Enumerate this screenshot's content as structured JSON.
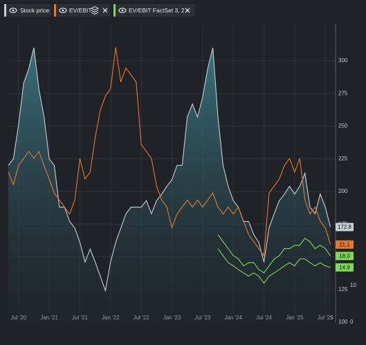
{
  "chart_data": {
    "type": "line",
    "legend": [
      "Stock price",
      "EV/EBIT",
      "EV/EBIT FactSet 3, 2"
    ],
    "x": [
      "2020-05",
      "2020-06",
      "2020-07",
      "2020-08",
      "2020-09",
      "2020-10",
      "2020-11",
      "2020-12",
      "2021-01",
      "2021-02",
      "2021-03",
      "2021-04",
      "2021-05",
      "2021-06",
      "2021-07",
      "2021-08",
      "2021-09",
      "2021-10",
      "2021-11",
      "2021-12",
      "2022-01",
      "2022-02",
      "2022-03",
      "2022-04",
      "2022-05",
      "2022-06",
      "2022-07",
      "2022-08",
      "2022-09",
      "2022-10",
      "2022-11",
      "2022-12",
      "2023-01",
      "2023-02",
      "2023-03",
      "2023-04",
      "2023-05",
      "2023-06",
      "2023-07",
      "2023-08",
      "2023-09",
      "2023-10",
      "2023-11",
      "2023-12",
      "2024-01",
      "2024-02",
      "2024-03",
      "2024-04",
      "2024-05",
      "2024-06",
      "2024-07",
      "2024-08",
      "2024-09",
      "2024-10",
      "2024-11",
      "2024-12",
      "2025-01",
      "2025-02",
      "2025-03",
      "2025-04",
      "2025-05",
      "2025-06",
      "2025-07",
      "2025-08"
    ],
    "xlim": [
      "2020-05",
      "2025-09"
    ],
    "xticks": [
      {
        "value": "2020-07",
        "label": "Jul '20"
      },
      {
        "value": "2021-01",
        "label": "Jan '21"
      },
      {
        "value": "2021-07",
        "label": "Jul '21"
      },
      {
        "value": "2022-01",
        "label": "Jan '22"
      },
      {
        "value": "2022-07",
        "label": "Jul '22"
      },
      {
        "value": "2023-01",
        "label": "Jan '23"
      },
      {
        "value": "2023-07",
        "label": "Jul '23"
      },
      {
        "value": "2024-01",
        "label": "Jan '24"
      },
      {
        "value": "2024-07",
        "label": "Jul '24"
      },
      {
        "value": "2025-01",
        "label": "Jan '25"
      },
      {
        "value": "2025-07",
        "label": "Jul '25"
      }
    ],
    "ylim": [
      100,
      328
    ],
    "yticks": [
      100,
      125,
      150,
      175,
      200,
      225,
      250,
      275,
      300
    ],
    "y2lim": [
      0,
      81
    ],
    "y2ticks": [
      0,
      10
    ],
    "grid": true,
    "series": [
      {
        "name": "Stock price",
        "color": "#c9ced4",
        "area": true,
        "values": [
          220,
          225,
          251,
          283,
          294,
          310,
          278,
          257,
          225,
          220,
          188,
          188,
          177,
          172,
          161,
          146,
          156,
          146,
          135,
          124,
          146,
          161,
          172,
          183,
          188,
          188,
          188,
          193,
          183,
          193,
          198,
          204,
          209,
          220,
          220,
          257,
          267,
          257,
          272,
          294,
          310,
          257,
          220,
          204,
          193,
          188,
          177,
          177,
          167,
          161,
          146,
          172,
          183,
          193,
          198,
          204,
          198,
          204,
          214,
          188,
          183,
          198,
          188,
          172.8
        ]
      },
      {
        "name": "EV/EBIT",
        "color": "#e8792b",
        "axis": "y2",
        "values": [
          40.8,
          37.4,
          42.6,
          44.5,
          46.4,
          44.5,
          46.4,
          42.6,
          38.9,
          35.1,
          33.2,
          31.3,
          29.4,
          33.2,
          44.5,
          38.9,
          40.8,
          50.2,
          57.7,
          61.5,
          63.4,
          74.7,
          65.3,
          69.1,
          67.2,
          65.3,
          48.3,
          46.4,
          44.5,
          37.0,
          33.2,
          31.3,
          25.7,
          29.4,
          31.3,
          33.2,
          31.3,
          33.2,
          31.3,
          33.2,
          35.1,
          31.3,
          29.4,
          31.3,
          29.4,
          31.3,
          27.5,
          23.8,
          21.9,
          20.0,
          18.1,
          35.1,
          37.0,
          38.9,
          42.6,
          44.5,
          40.8,
          44.5,
          33.2,
          29.4,
          31.3,
          27.5,
          25.7,
          21.1
        ],
        "value_labels": [
          null,
          null,
          null,
          null,
          null,
          null,
          null,
          null,
          null,
          null,
          null,
          null,
          null,
          null,
          null,
          null,
          null,
          null,
          null,
          null,
          null,
          null,
          null,
          null,
          null,
          null,
          null,
          null,
          null,
          null,
          null,
          null,
          null,
          null,
          null,
          null,
          null,
          null,
          null,
          null,
          null,
          null,
          null,
          null,
          null,
          null,
          null,
          null,
          null,
          null,
          null,
          null,
          null,
          null,
          null,
          null,
          null,
          null,
          null,
          null,
          null,
          null,
          null,
          "21,1"
        ]
      },
      {
        "name": "EV/EBIT FactSet 3, 2",
        "color": "#7ed957",
        "axis": "y2",
        "lines": [
          {
            "values": [
              null,
              null,
              null,
              null,
              null,
              null,
              null,
              null,
              null,
              null,
              null,
              null,
              null,
              null,
              null,
              null,
              null,
              null,
              null,
              null,
              null,
              null,
              null,
              null,
              null,
              null,
              null,
              null,
              null,
              null,
              null,
              null,
              null,
              null,
              null,
              null,
              null,
              null,
              null,
              null,
              null,
              23.8,
              21.9,
              20.0,
              18.1,
              17.2,
              15.3,
              16.2,
              16.2,
              14.3,
              13.4,
              15.3,
              17.2,
              18.1,
              20.0,
              20.0,
              20.9,
              20.9,
              22.8,
              21.9,
              20.0,
              20.9,
              20.0,
              18.0
            ],
            "value_labels": [
              null,
              null,
              null,
              null,
              null,
              null,
              null,
              null,
              null,
              null,
              null,
              null,
              null,
              null,
              null,
              null,
              null,
              null,
              null,
              null,
              null,
              null,
              null,
              null,
              null,
              null,
              null,
              null,
              null,
              null,
              null,
              null,
              null,
              null,
              null,
              null,
              null,
              null,
              null,
              null,
              null,
              null,
              null,
              null,
              null,
              null,
              null,
              null,
              null,
              null,
              null,
              null,
              null,
              null,
              null,
              null,
              null,
              null,
              null,
              null,
              null,
              null,
              null,
              "18,0"
            ]
          },
          {
            "values": [
              null,
              null,
              null,
              null,
              null,
              null,
              null,
              null,
              null,
              null,
              null,
              null,
              null,
              null,
              null,
              null,
              null,
              null,
              null,
              null,
              null,
              null,
              null,
              null,
              null,
              null,
              null,
              null,
              null,
              null,
              null,
              null,
              null,
              null,
              null,
              null,
              null,
              null,
              null,
              null,
              null,
              20.0,
              18.1,
              16.2,
              15.3,
              14.3,
              13.4,
              12.5,
              13.4,
              12.5,
              10.6,
              12.5,
              13.4,
              14.3,
              15.3,
              16.2,
              15.3,
              17.2,
              17.2,
              16.2,
              15.3,
              16.2,
              15.3,
              14.9
            ],
            "value_labels": [
              null,
              null,
              null,
              null,
              null,
              null,
              null,
              null,
              null,
              null,
              null,
              null,
              null,
              null,
              null,
              null,
              null,
              null,
              null,
              null,
              null,
              null,
              null,
              null,
              null,
              null,
              null,
              null,
              null,
              null,
              null,
              null,
              null,
              null,
              null,
              null,
              null,
              null,
              null,
              null,
              null,
              null,
              null,
              null,
              null,
              null,
              null,
              null,
              null,
              null,
              null,
              null,
              null,
              null,
              null,
              null,
              null,
              null,
              null,
              null,
              null,
              null,
              null,
              "14,9"
            ]
          }
        ]
      }
    ]
  }
}
